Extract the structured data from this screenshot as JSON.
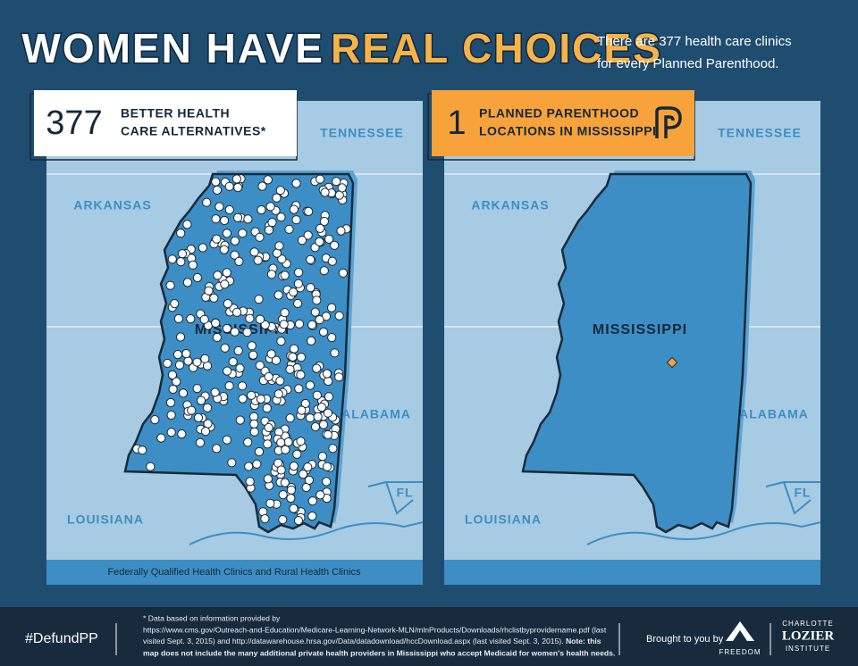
{
  "header": {
    "title_part1": "WOMEN HAVE",
    "title_part2": "REAL CHOICES",
    "subtitle_line1": "There are 377 health care clinics",
    "subtitle_line2": "for every Planned Parenthood."
  },
  "panels": [
    {
      "count": 377,
      "label_line1": "BETTER HEALTH",
      "label_line2": "CARE ALTERNATIVES*",
      "states": {
        "tennessee": "TENNESSEE",
        "arkansas": "ARKANSAS",
        "mississippi": "MISSISSIPPI",
        "alabama": "ALABAMA",
        "louisiana": "LOUISIANA",
        "fl": "FL"
      },
      "caption": "Federally Qualified Health Clinics and Rural Health Clinics"
    },
    {
      "count": 1,
      "label_line1": "PLANNED PARENTHOOD",
      "label_line2": "LOCATIONS IN MISSISSIPPI",
      "states": {
        "tennessee": "TENNESSEE",
        "arkansas": "ARKANSAS",
        "mississippi": "MISSISSIPPI",
        "alabama": "ALABAMA",
        "louisiana": "LOUISIANA",
        "fl": "FL"
      }
    }
  ],
  "footer": {
    "hashtag": "#DefundPP",
    "note_line1": "* Data based on information provided by",
    "note_line2": "https://www.cms.gov/Outreach-and-Education/Medicare-Learning-Network-MLN/mlnProducts/Downloads/rhclistbyprovidername.pdf (last",
    "note_line3": "visited Sept. 3, 2015) and http://datawarehouse.hrsa.gov/Data/datadownload/hccDownload.aspx (last visited Sept. 3, 2015).",
    "note_line3_bold": "Note: this",
    "note_line4": "map does not include the many additional private health providers in Mississippi who accept Medicaid for women's health needs.",
    "brought_by": "Brought to you by",
    "logo1_text": "FREEDOM",
    "logo2_line1": "CHARLOTTE",
    "logo2_line2": "LOZIER",
    "logo2_line3": "INSTITUTE"
  }
}
